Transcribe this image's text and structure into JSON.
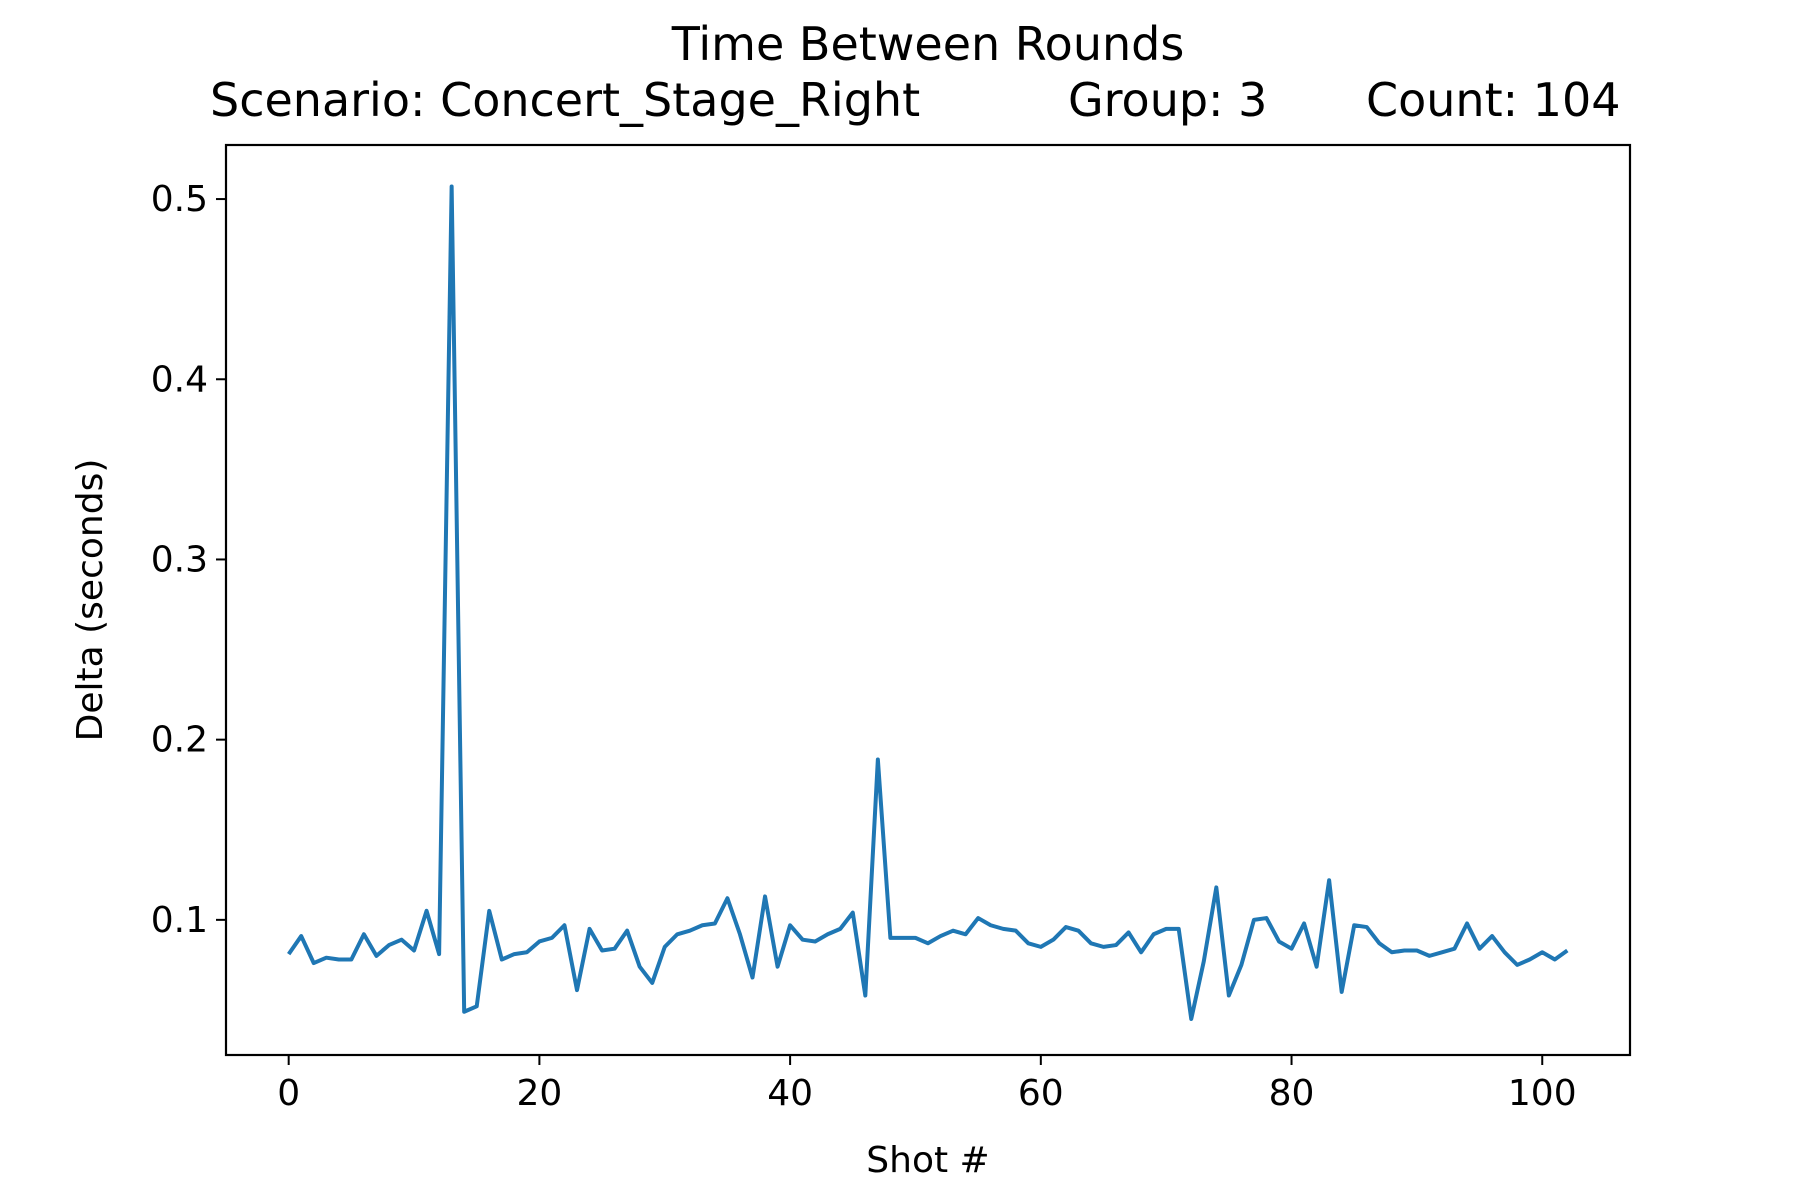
{
  "chart_data": {
    "type": "line",
    "title": "Time Between Rounds",
    "subtitle": {
      "scenario": "Scenario: Concert_Stage_Right",
      "group": "Group: 3",
      "count": "Count: 104"
    },
    "xlabel": "Shot #",
    "ylabel": "Delta (seconds)",
    "xlim": [
      -5,
      107
    ],
    "ylim": [
      0.025,
      0.53
    ],
    "xticks": [
      0,
      20,
      40,
      60,
      80,
      100
    ],
    "xtick_labels": [
      "0",
      "20",
      "40",
      "60",
      "80",
      "100"
    ],
    "yticks": [
      0.1,
      0.2,
      0.3,
      0.4,
      0.5
    ],
    "ytick_labels": [
      "0.1",
      "0.2",
      "0.3",
      "0.4",
      "0.5"
    ],
    "grid": false,
    "color": "#1f77b4",
    "series": [
      {
        "values": [
          0.081,
          0.091,
          0.076,
          0.079,
          0.078,
          0.078,
          0.092,
          0.08,
          0.086,
          0.089,
          0.083,
          0.105,
          0.081,
          0.507,
          0.049,
          0.052,
          0.105,
          0.078,
          0.081,
          0.082,
          0.088,
          0.09,
          0.097,
          0.061,
          0.095,
          0.083,
          0.084,
          0.094,
          0.074,
          0.065,
          0.085,
          0.092,
          0.094,
          0.097,
          0.098,
          0.112,
          0.092,
          0.068,
          0.113,
          0.074,
          0.097,
          0.089,
          0.088,
          0.092,
          0.095,
          0.104,
          0.058,
          0.189,
          0.09,
          0.09,
          0.09,
          0.087,
          0.091,
          0.094,
          0.092,
          0.101,
          0.097,
          0.095,
          0.094,
          0.087,
          0.085,
          0.089,
          0.096,
          0.094,
          0.087,
          0.085,
          0.086,
          0.093,
          0.082,
          0.092,
          0.095,
          0.095,
          0.045,
          0.077,
          0.118,
          0.058,
          0.075,
          0.1,
          0.101,
          0.088,
          0.084,
          0.098,
          0.074,
          0.122,
          0.06,
          0.097,
          0.096,
          0.087,
          0.082,
          0.083,
          0.083,
          0.08,
          0.082,
          0.084,
          0.098,
          0.084,
          0.091,
          0.082,
          0.075,
          0.078,
          0.082,
          0.078,
          0.083
        ]
      }
    ]
  }
}
